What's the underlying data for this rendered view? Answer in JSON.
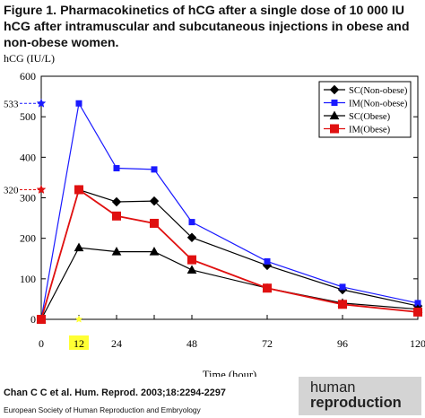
{
  "title_lines": [
    "Figure 1. Pharmacokinetics of hCG after a single dose of 10 000 IU",
    "hCG after intramuscular and subcutaneous injections in obese and",
    "non-obese women."
  ],
  "citation": "Chan C C et al. Hum. Reprod. 2003;18:2294-2297",
  "society": "European Society of Human Reproduction and Embryology",
  "logo": {
    "line1": "human",
    "line2": "reproduction"
  },
  "colors": {
    "black": "#000000",
    "blue": "#1a1aff",
    "red": "#e01010",
    "highlight": "#ffff33"
  },
  "chart_data": {
    "type": "line",
    "ylabel": "hCG (IU/L)",
    "xlabel": "Time (hour)",
    "xlim": [
      0,
      120
    ],
    "ylim": [
      0,
      600
    ],
    "xticks": [
      0,
      12,
      24,
      36,
      48,
      72,
      96,
      120
    ],
    "xtick_labels": [
      "0",
      "12",
      "24",
      "",
      "48",
      "72",
      "96",
      "120"
    ],
    "highlighted_xtick": "12",
    "yticks": [
      0,
      100,
      200,
      300,
      400,
      500,
      600
    ],
    "annotations": [
      {
        "label": "533",
        "y": 533,
        "color": "#1a1aff"
      },
      {
        "label": "320",
        "y": 320,
        "color": "#e01010"
      }
    ],
    "legend_position": "top-right",
    "grid": false,
    "series": [
      {
        "name": "SC(Non-obese)",
        "color": "#000000",
        "marker": "diamond",
        "x": [
          0,
          12,
          24,
          36,
          48,
          72,
          96,
          120
        ],
        "y": [
          0,
          320,
          290,
          292,
          202,
          133,
          73,
          33
        ]
      },
      {
        "name": "IM(Non-obese)",
        "color": "#1a1aff",
        "marker": "square",
        "x": [
          0,
          12,
          24,
          36,
          48,
          72,
          96,
          120
        ],
        "y": [
          0,
          533,
          373,
          370,
          240,
          143,
          80,
          40
        ]
      },
      {
        "name": "SC(Obese)",
        "color": "#000000",
        "marker": "triangle",
        "x": [
          0,
          12,
          24,
          36,
          48,
          72,
          96,
          120
        ],
        "y": [
          0,
          177,
          167,
          167,
          122,
          77,
          40,
          25
        ]
      },
      {
        "name": "IM(Obese)",
        "color": "#e01010",
        "marker": "bigsquare",
        "x": [
          0,
          12,
          24,
          36,
          48,
          72,
          96,
          120
        ],
        "y": [
          0,
          320,
          255,
          237,
          147,
          77,
          37,
          18
        ]
      }
    ]
  }
}
